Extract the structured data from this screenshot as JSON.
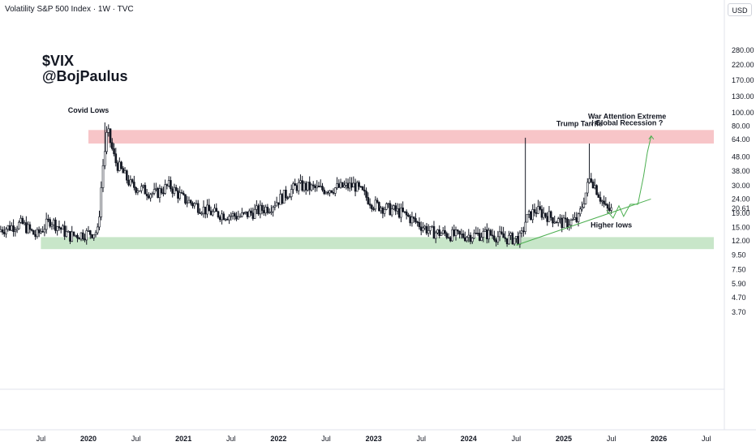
{
  "header": {
    "title": "Volatility S&P 500 Index · 1W · TVC",
    "currency": "USD"
  },
  "author": {
    "ticker": "$VIX",
    "handle": "@BojPaulus"
  },
  "chart_data": {
    "type": "candlestick",
    "title": "Volatility S&P 500 Index · 1W · TVC",
    "y_scale": "log",
    "y_ticks": [
      "280.00",
      "220.00",
      "170.00",
      "130.00",
      "100.00",
      "80.00",
      "64.00",
      "48.00",
      "38.00",
      "30.00",
      "24.00",
      "19.00",
      "15.00",
      "12.00",
      "9.50",
      "7.50",
      "5.90",
      "4.70",
      "3.70"
    ],
    "last_price": "20.61",
    "x_ticks": [
      "Jul",
      "2020",
      "Jul",
      "2021",
      "Jul",
      "2022",
      "Jul",
      "2023",
      "Jul",
      "2024",
      "Jul",
      "2025",
      "Jul",
      "2026",
      "Jul"
    ],
    "zones": [
      {
        "name": "resistance",
        "from": "2020-01",
        "to": "2026-08",
        "low": 60,
        "high": 75,
        "color": "#f7c5c8"
      },
      {
        "name": "support",
        "from": "2019-07",
        "to": "2026-08",
        "low": 10.5,
        "high": 12.8,
        "color": "#c8e6c9"
      }
    ],
    "annotations": [
      {
        "text": "Covid Lows",
        "x": "2020-01",
        "y": 100
      },
      {
        "text": "Trump Tarrifs",
        "x": "2025-03",
        "y": 80
      },
      {
        "text": "War Attention Extreme",
        "x": "2025-09",
        "y": 90
      },
      {
        "text": "/ Global Recession ?",
        "x": "2025-09",
        "y": 81
      },
      {
        "text": "Higher lows",
        "x": "2025-07",
        "y": 15
      }
    ],
    "trendline": {
      "from": [
        "2024-07",
        11.2
      ],
      "to": [
        "2025-12",
        24.0
      ]
    },
    "projection_color": "#4caf50",
    "candle_color": "#131722"
  }
}
